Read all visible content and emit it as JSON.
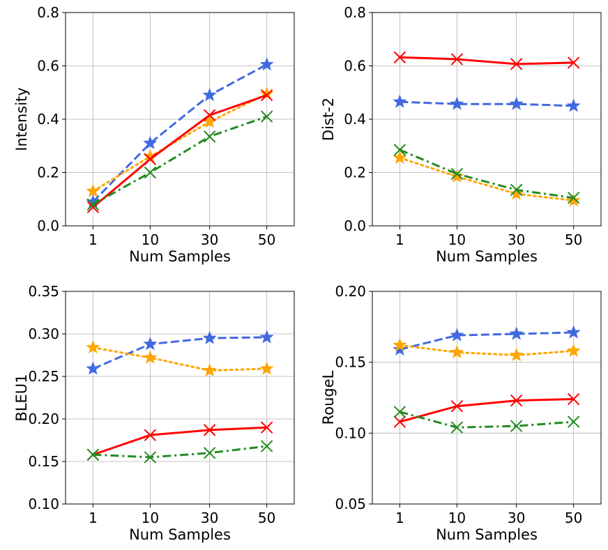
{
  "chart_data": [
    {
      "type": "line",
      "xlabel": "Num Samples",
      "ylabel": "Intensity",
      "categories": [
        "1",
        "10",
        "30",
        "50"
      ],
      "ylim": [
        0.0,
        0.8
      ],
      "yticks": [
        "0.0",
        "0.2",
        "0.4",
        "0.6",
        "0.8"
      ],
      "grid": true,
      "series": [
        {
          "values": [
            0.09,
            0.31,
            0.49,
            0.605
          ],
          "color": "#4169e1",
          "dash": "dashed",
          "marker": "star"
        },
        {
          "values": [
            0.13,
            0.26,
            0.39,
            0.495
          ],
          "color": "#ffa500",
          "dash": "dotted",
          "marker": "star"
        },
        {
          "values": [
            0.07,
            0.25,
            0.415,
            0.49
          ],
          "color": "#ff0000",
          "dash": "solid",
          "marker": "x"
        },
        {
          "values": [
            0.08,
            0.2,
            0.335,
            0.41
          ],
          "color": "#228b22",
          "dash": "dashdot",
          "marker": "x"
        }
      ]
    },
    {
      "type": "line",
      "xlabel": "Num Samples",
      "ylabel": "Dist-2",
      "categories": [
        "1",
        "10",
        "30",
        "50"
      ],
      "ylim": [
        0.0,
        0.8
      ],
      "yticks": [
        "0.0",
        "0.2",
        "0.4",
        "0.6",
        "0.8"
      ],
      "grid": true,
      "series": [
        {
          "values": [
            0.465,
            0.457,
            0.457,
            0.45
          ],
          "color": "#4169e1",
          "dash": "dashed",
          "marker": "star"
        },
        {
          "values": [
            0.255,
            0.185,
            0.12,
            0.095
          ],
          "color": "#ffa500",
          "dash": "dotted",
          "marker": "star"
        },
        {
          "values": [
            0.632,
            0.625,
            0.607,
            0.612
          ],
          "color": "#ff0000",
          "dash": "solid",
          "marker": "x"
        },
        {
          "values": [
            0.285,
            0.195,
            0.135,
            0.105
          ],
          "color": "#228b22",
          "dash": "dashdot",
          "marker": "x"
        }
      ]
    },
    {
      "type": "line",
      "xlabel": "Num Samples",
      "ylabel": "BLEU1",
      "categories": [
        "1",
        "10",
        "30",
        "50"
      ],
      "ylim": [
        0.1,
        0.35
      ],
      "yticks": [
        "0.10",
        "0.15",
        "0.20",
        "0.25",
        "0.30",
        "0.35"
      ],
      "grid": true,
      "series": [
        {
          "values": [
            0.259,
            0.288,
            0.295,
            0.296
          ],
          "color": "#4169e1",
          "dash": "dashed",
          "marker": "star"
        },
        {
          "values": [
            0.284,
            0.272,
            0.257,
            0.259
          ],
          "color": "#ffa500",
          "dash": "dotted",
          "marker": "star"
        },
        {
          "values": [
            0.158,
            0.181,
            0.187,
            0.19
          ],
          "color": "#ff0000",
          "dash": "solid",
          "marker": "x"
        },
        {
          "values": [
            0.158,
            0.155,
            0.16,
            0.168
          ],
          "color": "#228b22",
          "dash": "dashdot",
          "marker": "x"
        }
      ]
    },
    {
      "type": "line",
      "xlabel": "Num Samples",
      "ylabel": "RougeL",
      "categories": [
        "1",
        "10",
        "30",
        "50"
      ],
      "ylim": [
        0.05,
        0.2
      ],
      "yticks": [
        "0.05",
        "0.10",
        "0.15",
        "0.20"
      ],
      "grid": true,
      "series": [
        {
          "values": [
            0.159,
            0.169,
            0.17,
            0.171
          ],
          "color": "#4169e1",
          "dash": "dashed",
          "marker": "star"
        },
        {
          "values": [
            0.162,
            0.157,
            0.155,
            0.158
          ],
          "color": "#ffa500",
          "dash": "dotted",
          "marker": "star"
        },
        {
          "values": [
            0.108,
            0.119,
            0.123,
            0.124
          ],
          "color": "#ff0000",
          "dash": "solid",
          "marker": "x"
        },
        {
          "values": [
            0.115,
            0.104,
            0.105,
            0.108
          ],
          "color": "#228b22",
          "dash": "dashdot",
          "marker": "x"
        }
      ]
    }
  ]
}
